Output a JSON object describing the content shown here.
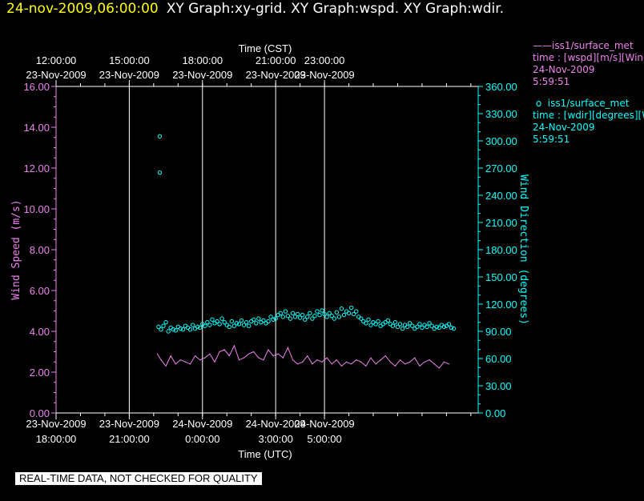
{
  "header": {
    "timestamp": "24-nov-2009,06:00:00",
    "graphs": "XY Graph:xy-grid.  XY Graph:wspd.  XY Graph:wdir."
  },
  "legend": {
    "wspd": {
      "name": "iss1/surface_met",
      "desc": "time : [wspd][m/s][Wind",
      "date": "24-Nov-2009",
      "time": "5:59:51"
    },
    "wdir": {
      "name": "iss1/surface_met",
      "desc": "time : [wdir][degrees][W",
      "date": "24-Nov-2009",
      "time": "5:59:51"
    }
  },
  "banner": "REAL-TIME DATA, NOT CHECKED FOR QUALITY",
  "colors": {
    "wspd": "#ee82ee",
    "wdir": "#00ffff",
    "grid": "#ffffff",
    "background": "#000000"
  },
  "chart_data": {
    "type": "line",
    "x_top_label": "Time (CST)",
    "x_bottom_label": "Time (UTC)",
    "y_left_label": "Wind Speed (m/s)",
    "y_right_label": "Wind Direction (degrees)",
    "x_range_utc_hours": [
      18,
      35.3
    ],
    "y_left_range": [
      0,
      16
    ],
    "y_right_range": [
      0,
      360
    ],
    "y_left_ticks": [
      "0.00",
      "2.00",
      "4.00",
      "6.00",
      "8.00",
      "10.00",
      "12.00",
      "14.00",
      "16.00"
    ],
    "y_right_ticks": [
      "0.00",
      "30.00",
      "60.00",
      "90.00",
      "120.00",
      "150.00",
      "180.00",
      "210.00",
      "240.00",
      "270.00",
      "300.00",
      "330.00",
      "360.00"
    ],
    "bottom_ticks": [
      {
        "t": 18,
        "date": "23-Nov-2009",
        "time": "18:00:00"
      },
      {
        "t": 21,
        "date": "23-Nov-2009",
        "time": "21:00:00"
      },
      {
        "t": 24,
        "date": "24-Nov-2009",
        "time": "0:00:00"
      },
      {
        "t": 27,
        "date": "24-Nov-2009",
        "time": "3:00:00"
      },
      {
        "t": 29,
        "date": "24-Nov-2009",
        "time": "5:00:00"
      }
    ],
    "top_ticks": [
      {
        "t": 18,
        "time": "12:00:00",
        "date": "23-Nov-2009"
      },
      {
        "t": 21,
        "time": "15:00:00",
        "date": "23-Nov-2009"
      },
      {
        "t": 24,
        "time": "18:00:00",
        "date": "23-Nov-2009"
      },
      {
        "t": 27,
        "time": "21:00:00",
        "date": "23-Nov-2009"
      },
      {
        "t": 29,
        "time": "23:00:00",
        "date": "23-Nov-2009"
      }
    ],
    "grid_lines_utc_hours": [
      21,
      24,
      27,
      29
    ],
    "series": [
      {
        "name": "iss1/surface_met",
        "axis": "left",
        "style": "line",
        "x": [
          22.15,
          22.3,
          22.5,
          22.7,
          22.9,
          23.1,
          23.3,
          23.5,
          23.7,
          23.9,
          24.1,
          24.3,
          24.5,
          24.7,
          24.9,
          25.1,
          25.3,
          25.5,
          25.7,
          25.9,
          26.1,
          26.3,
          26.5,
          26.7,
          26.9,
          27.1,
          27.3,
          27.5,
          27.7,
          27.9,
          28.1,
          28.3,
          28.5,
          28.7,
          28.9,
          29.1,
          29.3,
          29.5,
          29.7,
          29.9,
          30.1,
          30.3,
          30.5,
          30.7,
          30.9,
          31.1,
          31.3,
          31.5,
          31.7,
          31.9,
          32.1,
          32.3,
          32.5,
          32.7,
          32.9,
          33.1,
          33.3,
          33.5,
          33.7,
          33.9,
          34.1
        ],
        "values": [
          2.9,
          2.6,
          2.3,
          2.8,
          2.4,
          2.6,
          2.5,
          2.4,
          2.8,
          2.6,
          2.7,
          2.9,
          2.5,
          3.0,
          3.1,
          2.8,
          3.3,
          2.6,
          2.7,
          2.9,
          3.0,
          2.7,
          2.6,
          3.1,
          2.8,
          2.9,
          2.7,
          3.2,
          2.6,
          2.4,
          2.5,
          2.8,
          2.4,
          2.6,
          2.5,
          2.7,
          2.4,
          2.6,
          2.3,
          2.5,
          2.4,
          2.6,
          2.5,
          2.3,
          2.7,
          2.4,
          2.6,
          2.8,
          2.5,
          2.3,
          2.6,
          2.4,
          2.5,
          2.7,
          2.3,
          2.5,
          2.6,
          2.4,
          2.2,
          2.5,
          2.4
        ]
      },
      {
        "name": "iss1/surface_met",
        "axis": "right",
        "style": "circles",
        "x": [
          22.2,
          22.3,
          22.4,
          22.5,
          22.6,
          22.7,
          22.8,
          22.9,
          23.0,
          23.1,
          23.2,
          23.3,
          23.4,
          23.5,
          23.6,
          23.7,
          23.8,
          23.9,
          24.0,
          24.1,
          24.2,
          24.3,
          24.4,
          24.5,
          24.6,
          24.7,
          24.8,
          24.9,
          25.0,
          25.1,
          25.2,
          25.3,
          25.4,
          25.5,
          25.6,
          25.7,
          25.8,
          25.9,
          26.0,
          26.1,
          26.2,
          26.3,
          26.4,
          26.5,
          26.6,
          26.7,
          26.8,
          26.9,
          27.0,
          27.1,
          27.2,
          27.3,
          27.4,
          27.5,
          27.6,
          27.7,
          27.8,
          27.9,
          28.0,
          28.1,
          28.2,
          28.3,
          28.4,
          28.5,
          28.6,
          28.7,
          28.8,
          28.9,
          29.0,
          29.1,
          29.2,
          29.3,
          29.4,
          29.5,
          29.6,
          29.7,
          29.8,
          29.9,
          30.0,
          30.1,
          30.2,
          30.3,
          30.4,
          30.5,
          30.6,
          30.7,
          30.8,
          30.9,
          31.0,
          31.1,
          31.2,
          31.3,
          31.4,
          31.5,
          31.6,
          31.7,
          31.8,
          31.9,
          32.0,
          32.1,
          32.2,
          32.3,
          32.4,
          32.5,
          32.6,
          32.7,
          32.8,
          32.9,
          33.0,
          33.1,
          33.2,
          33.3,
          33.4,
          33.5,
          33.6,
          33.7,
          33.8,
          33.9,
          34.0,
          34.1,
          34.2,
          34.3,
          22.25,
          22.25
        ],
        "values": [
          95,
          92,
          96,
          100,
          90,
          94,
          92,
          91,
          95,
          93,
          92,
          96,
          94,
          92,
          97,
          93,
          95,
          94,
          98,
          96,
          100,
          97,
          103,
          99,
          101,
          98,
          104,
          100,
          97,
          95,
          101,
          96,
          99,
          98,
          102,
          97,
          100,
          96,
          101,
          103,
          99,
          104,
          100,
          102,
          99,
          101,
          106,
          103,
          104,
          108,
          110,
          106,
          112,
          107,
          104,
          110,
          106,
          109,
          105,
          108,
          103,
          106,
          110,
          104,
          107,
          112,
          108,
          113,
          109,
          106,
          110,
          107,
          104,
          111,
          106,
          115,
          108,
          112,
          110,
          116,
          109,
          112,
          106,
          104,
          101,
          99,
          103,
          97,
          100,
          98,
          101,
          96,
          98,
          100,
          102,
          98,
          96,
          100,
          95,
          98,
          93,
          97,
          95,
          99,
          96,
          93,
          95,
          98,
          94,
          97,
          95,
          99,
          96,
          93,
          95,
          94,
          97,
          95,
          96,
          98,
          94,
          93,
          305,
          265
        ]
      }
    ]
  }
}
